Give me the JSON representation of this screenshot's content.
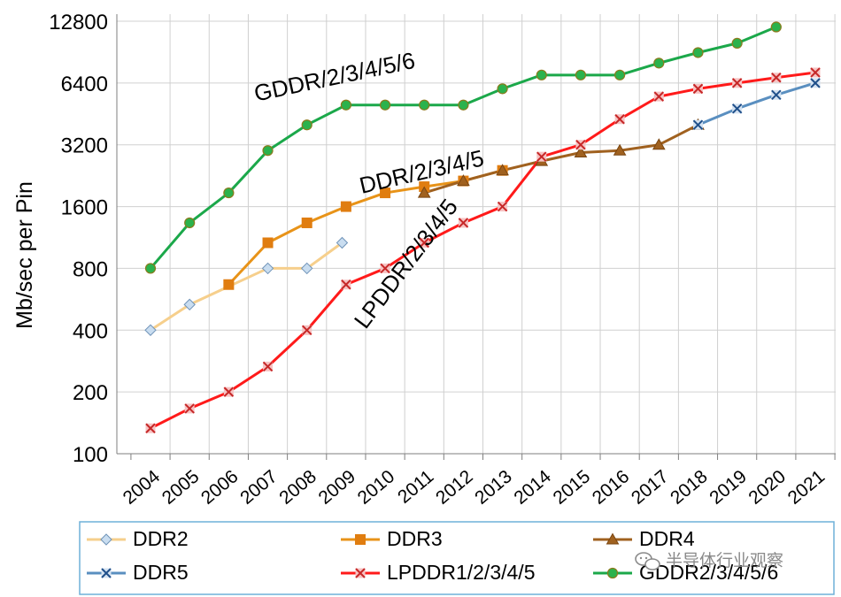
{
  "chart_data": {
    "type": "line",
    "title": "",
    "xlabel": "",
    "ylabel": "Mb/sec per Pin",
    "yscale": "log2",
    "ylim": [
      100,
      12800
    ],
    "yticks": [
      100,
      200,
      400,
      800,
      1600,
      3200,
      6400,
      12800
    ],
    "ytick_labels": [
      "100",
      "200",
      "400",
      "800",
      "1600",
      "3200",
      "6400",
      "12800"
    ],
    "categories": [
      "2004",
      "2005",
      "2006",
      "2007",
      "2008",
      "2009",
      "2010",
      "2011",
      "2012",
      "2013",
      "2014",
      "2015",
      "2016",
      "2017",
      "2018",
      "2019",
      "2020",
      "2021"
    ],
    "grid": true,
    "legend_position": "bottom",
    "series": [
      {
        "name": "DDR2",
        "color": "#f6cf8c",
        "marker": "diamond",
        "marker_fill": "#c9ddf0",
        "marker_stroke": "#6f93b8",
        "x": [
          2004,
          2005,
          2007,
          2008,
          2008.9
        ],
        "values": [
          400,
          533,
          800,
          800,
          1066
        ]
      },
      {
        "name": "DDR3",
        "color": "#e89318",
        "marker": "square",
        "marker_fill": "#e07d10",
        "marker_stroke": "#e07d10",
        "x": [
          2006,
          2007,
          2008,
          2009,
          2010,
          2011,
          2012,
          2013
        ],
        "values": [
          667,
          1066,
          1333,
          1600,
          1866,
          2000,
          2133,
          2400
        ]
      },
      {
        "name": "DDR4",
        "color": "#a0611f",
        "marker": "triangle",
        "marker_fill": "#a0611f",
        "marker_stroke": "#7a4612",
        "x": [
          2011,
          2012,
          2013,
          2014,
          2015,
          2016,
          2017,
          2018
        ],
        "values": [
          1866,
          2133,
          2400,
          2666,
          2933,
          3000,
          3200,
          4000
        ]
      },
      {
        "name": "DDR5",
        "color": "#5a8fc0",
        "marker": "x",
        "marker_fill": "#d4e2f1",
        "marker_stroke": "#1f4f8a",
        "x": [
          2018,
          2019,
          2020,
          2021
        ],
        "values": [
          4000,
          4800,
          5600,
          6400
        ]
      },
      {
        "name": "LPDDR1/2/3/4/5",
        "color": "#ff1a1a",
        "marker": "x",
        "marker_fill": "#f7c3c3",
        "marker_stroke": "#c62828",
        "x": [
          2004,
          2005,
          2006,
          2007,
          2008,
          2009,
          2010,
          2011,
          2012,
          2013,
          2014,
          2015,
          2016,
          2017,
          2018,
          2019,
          2020,
          2021
        ],
        "values": [
          133,
          166,
          200,
          266,
          400,
          667,
          800,
          1066,
          1333,
          1600,
          2800,
          3200,
          4266,
          5500,
          6000,
          6400,
          6800,
          7200
        ]
      },
      {
        "name": "GDDR2/3/4/5/6",
        "color": "#1ba84a",
        "marker": "circle",
        "marker_fill": "#2bb24c",
        "marker_stroke": "#8a7a1c",
        "x": [
          2004,
          2005,
          2006,
          2007,
          2008,
          2009,
          2010,
          2011,
          2012,
          2013,
          2014,
          2015,
          2016,
          2017,
          2018,
          2019,
          2020
        ],
        "values": [
          800,
          1333,
          1866,
          3000,
          4000,
          5000,
          5000,
          5000,
          5000,
          6000,
          7000,
          7000,
          7000,
          8000,
          9000,
          10000,
          12000
        ]
      }
    ],
    "annotations": [
      {
        "text": "GDDR/2/3/4/5/6",
        "x": 2006.7,
        "y": 5200,
        "rotate": -12
      },
      {
        "text": "DDR/2/3/4/5",
        "x": 2009.4,
        "y": 1850,
        "rotate": -13
      },
      {
        "text": "LPDDR/2/3/4/5",
        "x": 2009.5,
        "y": 400,
        "rotate": -53
      }
    ]
  },
  "watermark": {
    "icon": "wechat-icon",
    "text": "半导体行业观察"
  }
}
